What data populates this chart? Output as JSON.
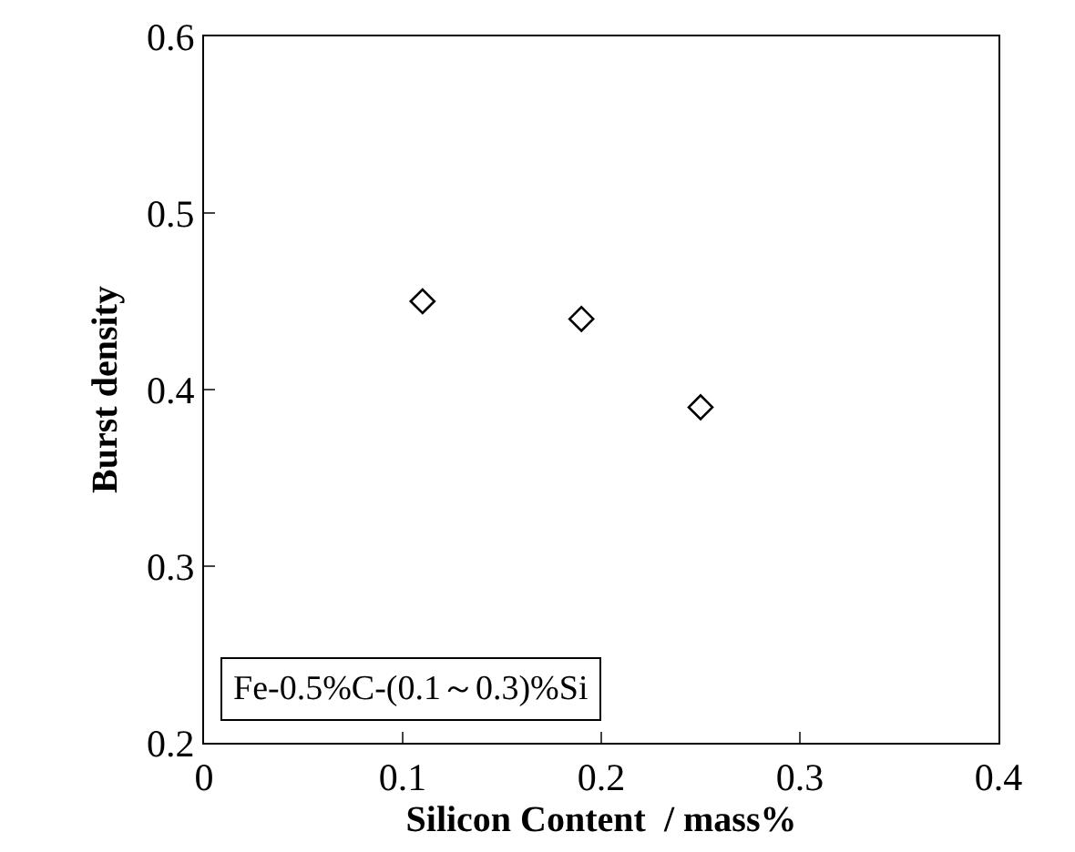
{
  "chart_data": {
    "type": "scatter",
    "xlabel": "Silicon Content  / mass%",
    "ylabel": "Burst density",
    "x": [
      0.11,
      0.19,
      0.25
    ],
    "series": [
      {
        "color": "#000000",
        "values": [
          0.45,
          0.44,
          0.39
        ]
      }
    ],
    "xlim": [
      0,
      0.4
    ],
    "xticks": [
      0,
      0.1,
      0.2,
      0.3,
      0.4
    ],
    "ylim": [
      0.2,
      0.6
    ],
    "yticks": [
      0.2,
      0.3,
      0.4,
      0.5,
      0.6
    ],
    "marker": "diamond",
    "grid": false,
    "annotations": [
      "Fe-0.5%C-(0.1～0.3)%Si"
    ]
  }
}
